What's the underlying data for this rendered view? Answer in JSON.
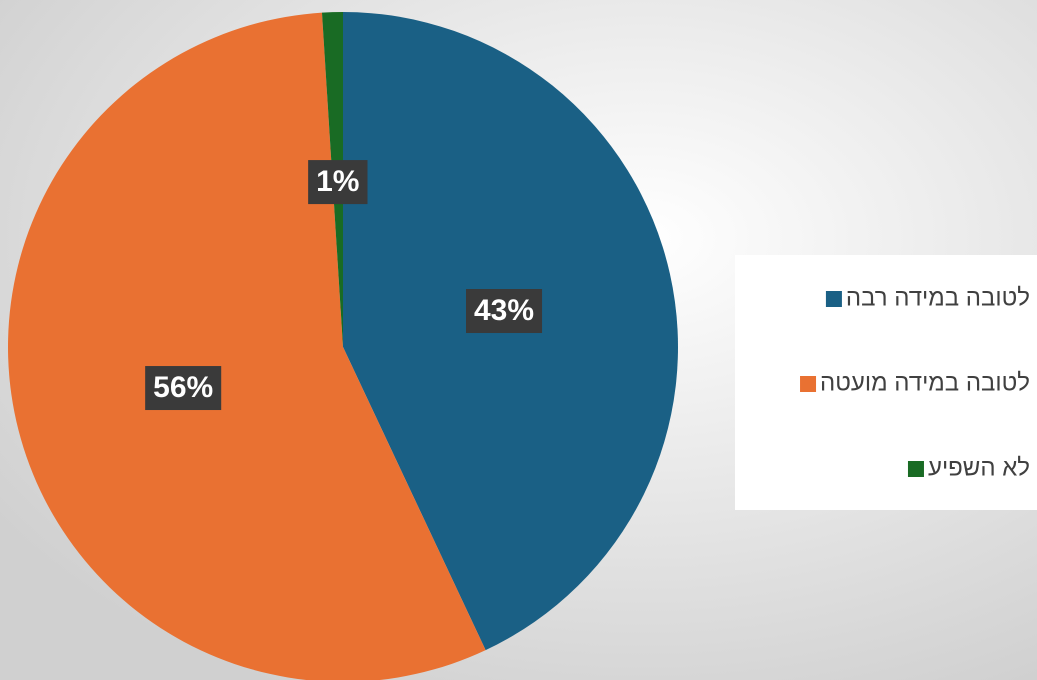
{
  "chart_data": {
    "type": "pie",
    "categories": [
      "לטובה במידה רבה",
      "לטובה במידה מועטה",
      "לא השפיע"
    ],
    "values": [
      43,
      56,
      1
    ],
    "value_labels": [
      "43%",
      "56%",
      "1%"
    ],
    "colors": [
      "#1a6085",
      "#e97132",
      "#196b24"
    ],
    "legend": "right"
  }
}
